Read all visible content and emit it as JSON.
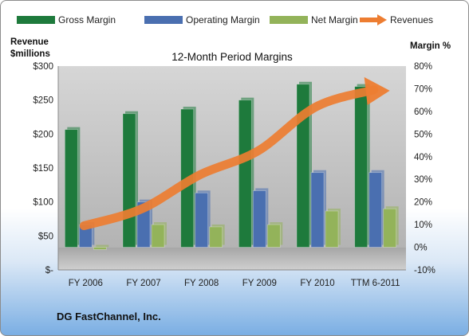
{
  "chart_data": {
    "type": "bar",
    "title": "12-Month Period Margins",
    "categories": [
      "FY 2006",
      "FY 2007",
      "FY 2008",
      "FY 2009",
      "FY 2010",
      "TTM 6-2011"
    ],
    "series": [
      {
        "name": "Gross Margin",
        "axis": "right",
        "color": "#1e7a3c",
        "values": [
          52,
          59,
          61,
          65,
          72,
          71
        ]
      },
      {
        "name": "Operating Margin",
        "axis": "right",
        "color": "#4a6fb0",
        "values": [
          10,
          20,
          24,
          25,
          33,
          33
        ]
      },
      {
        "name": "Net Margin",
        "axis": "right",
        "color": "#93b35a",
        "values": [
          -1,
          10,
          9,
          10,
          16,
          17
        ]
      },
      {
        "name": "Revenues",
        "axis": "left",
        "type": "arrow-line",
        "color": "#ed7d31",
        "values": [
          65,
          90,
          140,
          175,
          240,
          265
        ]
      }
    ],
    "y_left": {
      "label_line1": "Revenue",
      "label_line2": "$millions",
      "range": [
        0,
        300
      ],
      "ticks": [
        "$300",
        "$250",
        "$200",
        "$150",
        "$100",
        "$50",
        "$-"
      ]
    },
    "y_right": {
      "label": "Margin %",
      "range": [
        -10,
        80
      ],
      "ticks": [
        "80%",
        "70%",
        "60%",
        "50%",
        "40%",
        "30%",
        "20%",
        "10%",
        "0%",
        "-10%"
      ]
    },
    "legend": "top",
    "grid": false
  },
  "footer": {
    "company": "DG FastChannel, Inc."
  }
}
